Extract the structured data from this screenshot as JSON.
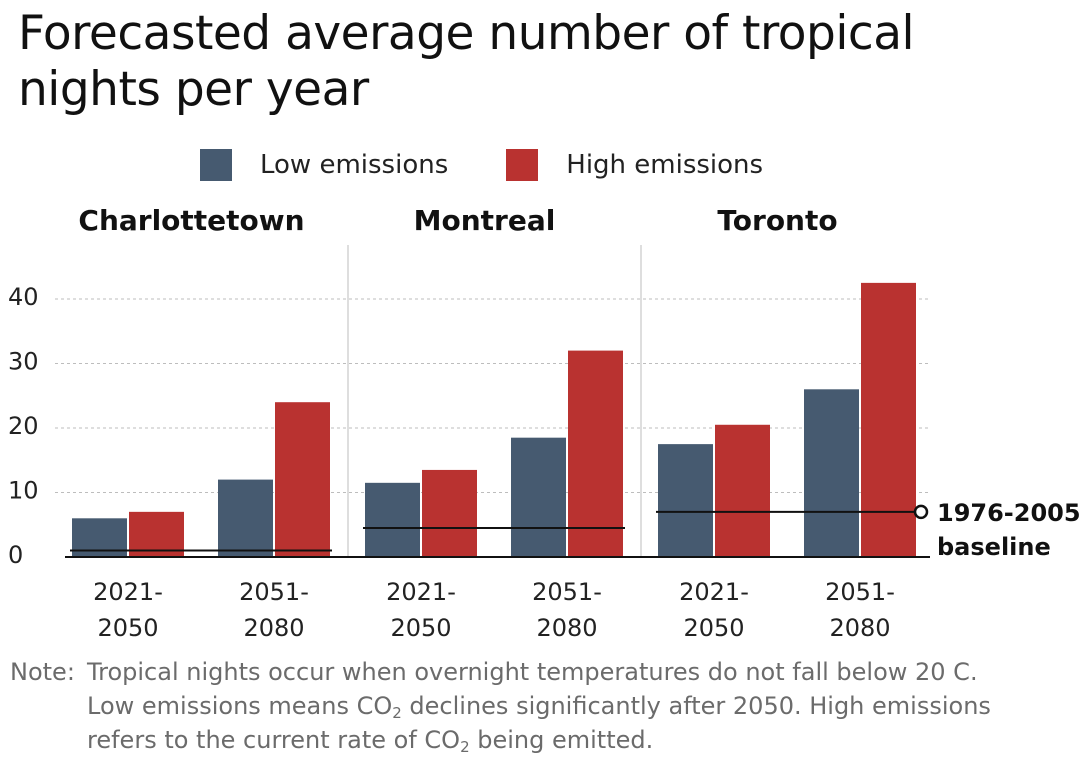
{
  "title": "Forecasted average number of tropical nights per year",
  "legend": [
    {
      "label": "Low emissions",
      "color": "#465a70"
    },
    {
      "label": "High emissions",
      "color": "#b93230"
    }
  ],
  "note": {
    "prefix": "Note:",
    "line1": "Tropical nights occur when overnight temperatures do not fall below 20 C.",
    "line2_a": "Low emissions means CO",
    "line2_sub": "2",
    "line2_b": " declines significantly after 2050. High emissions",
    "line3_a": "refers to the current rate of CO",
    "line3_sub": "2",
    "line3_b": " being emitted."
  },
  "chart_data": {
    "type": "bar",
    "title": "Forecasted average number of tropical nights per year",
    "ylim": [
      0,
      48
    ],
    "yticks": [
      0,
      10,
      20,
      30,
      40
    ],
    "grid": true,
    "legend_position": "top",
    "series_names": [
      "Low emissions",
      "High emissions"
    ],
    "colors": {
      "low": "#465a70",
      "high": "#b93230",
      "baseline": "#111111"
    },
    "baseline_label": [
      "1976-2005",
      "baseline"
    ],
    "panels": [
      {
        "city": "Charlottetown",
        "baseline": 1,
        "groups": [
          {
            "period": [
              "2021-",
              "2050"
            ],
            "low": 6,
            "high": 7
          },
          {
            "period": [
              "2051-",
              "2080"
            ],
            "low": 12,
            "high": 24
          }
        ]
      },
      {
        "city": "Montreal",
        "baseline": 4.5,
        "groups": [
          {
            "period": [
              "2021-",
              "2050"
            ],
            "low": 11.5,
            "high": 13.5
          },
          {
            "period": [
              "2051-",
              "2080"
            ],
            "low": 18.5,
            "high": 32
          }
        ]
      },
      {
        "city": "Toronto",
        "baseline": 7,
        "groups": [
          {
            "period": [
              "2021-",
              "2050"
            ],
            "low": 17.5,
            "high": 20.5
          },
          {
            "period": [
              "2051-",
              "2080"
            ],
            "low": 26,
            "high": 42.5
          }
        ]
      }
    ]
  }
}
